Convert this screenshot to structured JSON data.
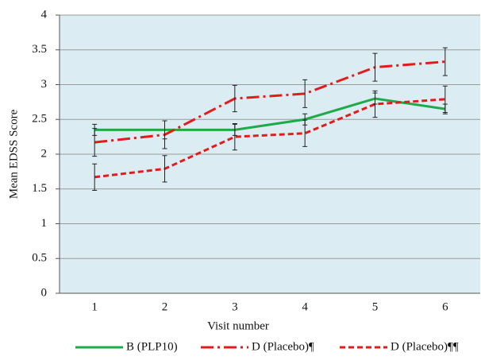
{
  "chart_data": {
    "type": "line",
    "x_label": "Visit number",
    "y_label": "Mean  EDSS Score",
    "categories": [
      "1",
      "2",
      "3",
      "4",
      "5",
      "6"
    ],
    "series": [
      {
        "name": "B (PLP10)",
        "color": "#1faa4a",
        "dash": "solid",
        "values": [
          2.35,
          2.35,
          2.35,
          2.5,
          2.8,
          2.65
        ],
        "errors": [
          0.08,
          0.13,
          0.08,
          0.08,
          0.08,
          0.07
        ]
      },
      {
        "name": "D (Placebo)¶",
        "color": "#e41b1b",
        "dash": "dashdot",
        "values": [
          2.17,
          2.28,
          2.8,
          2.87,
          3.25,
          3.33
        ],
        "errors": [
          0.2,
          0.2,
          0.19,
          0.2,
          0.2,
          0.2
        ]
      },
      {
        "name": "D (Placebo)¶¶",
        "color": "#e41b1b",
        "dash": "dashed",
        "values": [
          1.67,
          1.79,
          2.25,
          2.3,
          2.72,
          2.79
        ],
        "errors": [
          0.19,
          0.19,
          0.19,
          0.19,
          0.19,
          0.19
        ]
      }
    ],
    "ylim": [
      0,
      4
    ],
    "yticks": [
      0,
      0.5,
      1,
      1.5,
      2,
      2.5,
      3,
      3.5,
      4
    ],
    "grid": true,
    "background": "#dbedf3",
    "legend": "bottom"
  }
}
